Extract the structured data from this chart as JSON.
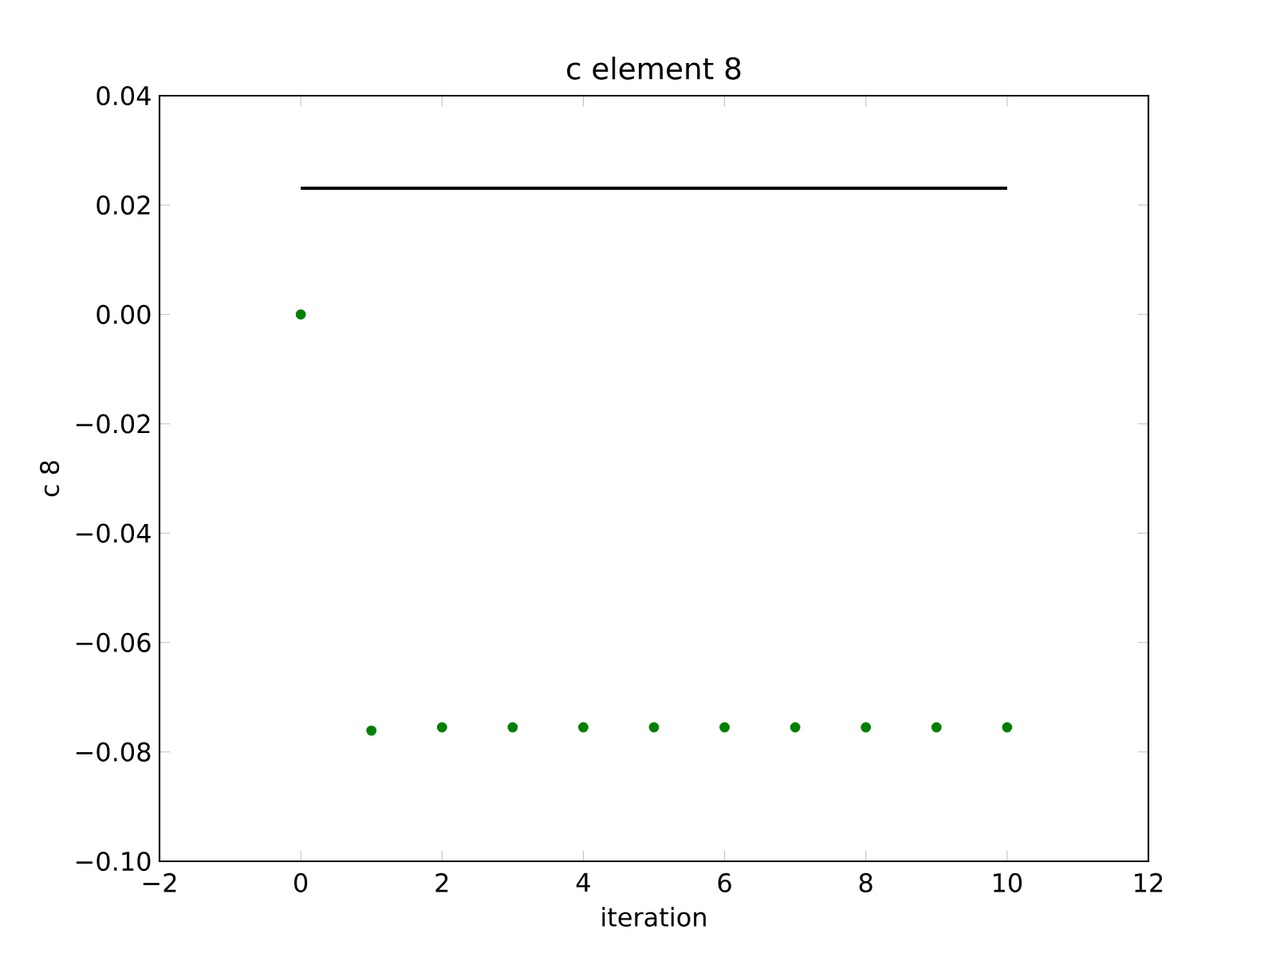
{
  "chart_data": {
    "type": "scatter",
    "title": "c element 8",
    "xlabel": "iteration",
    "ylabel": "c 8",
    "series": [
      {
        "type": "line",
        "color": "#000000",
        "x": [
          0,
          10
        ],
        "values": [
          0.0231,
          0.0231
        ]
      },
      {
        "color": "#008000",
        "marker": "circle",
        "x": [
          0,
          1,
          2,
          3,
          4,
          5,
          6,
          7,
          8,
          9,
          10
        ],
        "values": [
          0.0,
          -0.0761,
          -0.0755,
          -0.0755,
          -0.0755,
          -0.0755,
          -0.0755,
          -0.0755,
          -0.0755,
          -0.0755,
          -0.0755
        ]
      }
    ],
    "xlim": [
      -2,
      12
    ],
    "ylim": [
      -0.1,
      0.04
    ],
    "xticks": [
      {
        "value": -2,
        "label": "−2"
      },
      0,
      2,
      4,
      6,
      8,
      10,
      12
    ],
    "yticks": [
      {
        "value": -0.1,
        "label": "−0.10"
      },
      {
        "value": -0.08,
        "label": "−0.08"
      },
      {
        "value": -0.06,
        "label": "−0.06"
      },
      {
        "value": -0.04,
        "label": "−0.04"
      },
      {
        "value": -0.02,
        "label": "−0.02"
      },
      {
        "value": 0,
        "label": "0.00"
      },
      {
        "value": 0.02,
        "label": "0.02"
      },
      {
        "value": 0.04,
        "label": "0.04"
      }
    ],
    "grid": false
  }
}
